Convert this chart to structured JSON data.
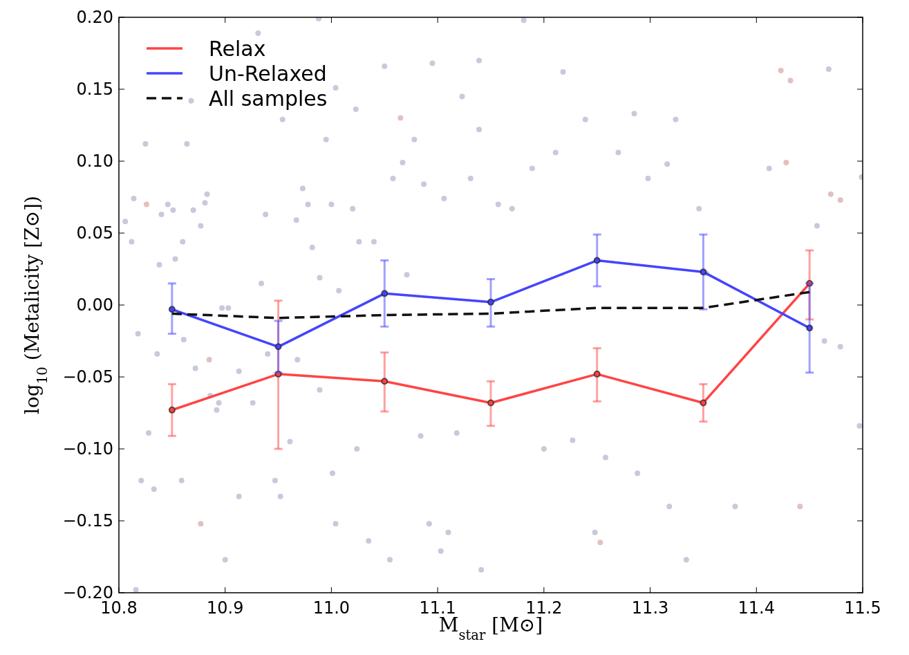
{
  "chart_data": {
    "type": "line",
    "xlabel": "M$_{star}$ [M⊙]",
    "ylabel": "log$_{10}$ (Metalicity [Z⊙])",
    "xlim": [
      10.8,
      11.5
    ],
    "ylim": [
      -0.2,
      0.2
    ],
    "xticks": [
      10.8,
      10.9,
      {
        "value": 11,
        "label": "11.0"
      },
      11.1,
      11.2,
      11.3,
      11.4,
      11.5
    ],
    "yticks": [
      {
        "value": -0.2,
        "label": "−0.20"
      },
      {
        "value": -0.15,
        "label": "−0.15"
      },
      {
        "value": -0.1,
        "label": "−0.10"
      },
      {
        "value": -0.05,
        "label": "−0.05"
      },
      {
        "value": 0,
        "label": "0.00"
      },
      {
        "value": 0.05,
        "label": "0.05"
      },
      {
        "value": 0.1,
        "label": "0.10"
      },
      {
        "value": 0.15,
        "label": "0.15"
      },
      {
        "value": 0.2,
        "label": "0.20"
      }
    ],
    "grid": false,
    "legend": "top left",
    "series": [
      {
        "type": "scatter",
        "color": "#c9c9dc",
        "marker": "circle",
        "x": [
          10.806,
          10.812,
          10.814,
          10.818,
          10.821,
          10.825,
          10.828,
          10.833,
          10.836,
          10.838,
          10.84,
          10.846,
          10.851,
          10.853,
          10.859,
          10.86,
          10.861,
          10.864,
          10.868,
          10.87,
          10.872,
          10.877,
          10.881,
          10.883,
          10.886,
          10.892,
          10.894,
          10.9,
          10.816,
          10.897,
          10.903,
          10.913,
          10.913,
          10.926,
          10.931,
          10.934,
          10.938,
          10.94,
          10.947,
          10.952,
          10.954,
          10.961,
          10.967,
          10.968,
          10.973,
          10.978,
          10.982,
          10.988,
          10.989,
          10.989,
          10.995,
          11.0,
          11.001,
          11.004,
          11.007,
          11.004,
          11.02,
          11.023,
          11.026,
          11.04,
          11.024,
          11.035,
          11.055,
          11.05,
          11.058,
          11.067,
          11.071,
          11.078,
          11.084,
          11.087,
          11.092,
          11.095,
          11.103,
          11.106,
          11.11,
          11.118,
          11.123,
          11.131,
          11.139,
          11.139,
          11.141,
          11.157,
          11.17,
          11.181,
          11.189,
          11.2,
          11.211,
          11.218,
          11.227,
          11.239,
          11.248,
          11.258,
          11.27,
          11.285,
          11.288,
          11.298,
          11.316,
          11.324,
          11.318,
          11.334,
          11.346,
          11.353,
          11.38,
          11.412,
          11.457,
          11.464,
          11.468,
          11.479,
          11.497,
          11.499
        ],
        "values": [
          0.058,
          0.044,
          0.074,
          -0.02,
          -0.122,
          0.112,
          -0.089,
          -0.128,
          -0.034,
          0.028,
          0.063,
          0.07,
          0.066,
          0.032,
          -0.122,
          0.044,
          -0.024,
          0.112,
          0.142,
          0.066,
          -0.044,
          0.055,
          0.071,
          0.077,
          -0.063,
          -0.073,
          -0.068,
          -0.177,
          -0.198,
          -0.002,
          -0.002,
          -0.046,
          -0.133,
          -0.068,
          0.189,
          0.015,
          0.063,
          -0.034,
          -0.122,
          -0.133,
          0.129,
          -0.095,
          0.059,
          -0.038,
          0.081,
          0.07,
          0.04,
          0.199,
          0.019,
          -0.059,
          0.115,
          0.07,
          -0.117,
          -0.152,
          0.01,
          0.151,
          0.067,
          0.136,
          0.044,
          0.044,
          -0.1,
          -0.164,
          -0.177,
          0.166,
          0.088,
          0.099,
          0.021,
          0.115,
          -0.091,
          0.084,
          -0.152,
          0.168,
          -0.171,
          0.074,
          -0.158,
          -0.089,
          0.145,
          0.088,
          0.122,
          0.17,
          -0.184,
          0.07,
          0.067,
          0.198,
          0.095,
          -0.1,
          0.106,
          0.162,
          -0.094,
          0.129,
          -0.158,
          -0.106,
          0.106,
          0.133,
          -0.117,
          0.088,
          0.098,
          0.129,
          -0.14,
          -0.177,
          0.067,
          0.022,
          -0.14,
          0.095,
          0.055,
          -0.025,
          0.164,
          -0.029,
          -0.084,
          0.089
        ]
      },
      {
        "type": "scatter",
        "color": "#e3c0c0",
        "marker": "circle",
        "x": [
          10.826,
          10.885,
          10.877,
          11.065,
          11.423,
          11.428,
          11.432,
          11.441,
          11.47,
          11.479,
          11.253
        ],
        "values": [
          0.07,
          -0.038,
          -0.152,
          0.13,
          0.163,
          0.099,
          0.156,
          -0.14,
          0.077,
          0.073,
          -0.165
        ]
      },
      {
        "name": "Relax",
        "color": "#ff4444",
        "marker": "circle",
        "line_style": "solid",
        "x": [
          10.85,
          10.95,
          11.05,
          11.15,
          11.25,
          11.35,
          11.45
        ],
        "values": [
          -0.073,
          -0.048,
          -0.053,
          -0.068,
          -0.048,
          -0.068,
          0.015
        ],
        "errors": [
          [
            -0.091,
            -0.055
          ],
          [
            -0.1,
            0.003
          ],
          [
            -0.074,
            -0.033
          ],
          [
            -0.084,
            -0.053
          ],
          [
            -0.067,
            -0.03
          ],
          [
            -0.081,
            -0.055
          ],
          [
            -0.01,
            0.038
          ]
        ]
      },
      {
        "name": "Un-Relaxed",
        "color": "#4444ff",
        "marker": "circle",
        "line_style": "solid",
        "x": [
          10.85,
          10.95,
          11.05,
          11.15,
          11.25,
          11.35,
          11.45
        ],
        "values": [
          -0.003,
          -0.029,
          0.008,
          0.002,
          0.031,
          0.023,
          -0.016
        ],
        "errors": [
          [
            -0.02,
            0.015
          ],
          [
            -0.047,
            -0.011
          ],
          [
            -0.015,
            0.031
          ],
          [
            -0.015,
            0.018
          ],
          [
            0.013,
            0.049
          ],
          [
            -0.003,
            0.049
          ],
          [
            -0.047,
            0.015
          ]
        ]
      },
      {
        "name": "All samples",
        "color": "#111111",
        "marker": "none",
        "line_style": "dashed",
        "x": [
          10.85,
          10.95,
          11.05,
          11.15,
          11.25,
          11.35,
          11.45
        ],
        "values": [
          -0.006,
          -0.009,
          -0.007,
          -0.006,
          -0.002,
          -0.002,
          0.009
        ]
      }
    ]
  }
}
